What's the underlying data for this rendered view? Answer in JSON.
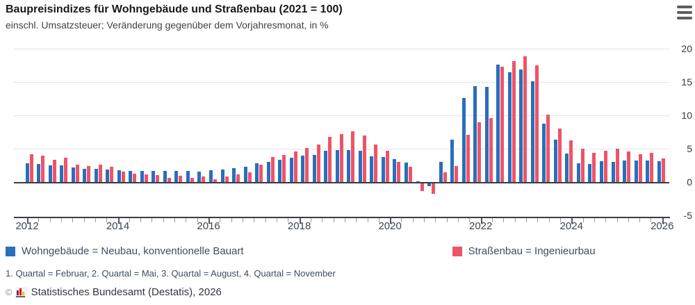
{
  "header": {
    "title": "Baupreisindizes für Wohngebäude und Straßenbau (2021 = 100)",
    "subtitle": "einschl. Umsatzsteuer; Veränderung gegenüber dem Vorjahresmonat, in %"
  },
  "menu": {
    "icon": "hamburger-menu-icon"
  },
  "chart_data": {
    "type": "bar",
    "title": "Baupreisindizes für Wohngebäude und Straßenbau (2021 = 100)",
    "subtitle": "einschl. Umsatzsteuer; Veränderung gegenüber dem Vorjahresmonat, in %",
    "ylabel": "",
    "xlabel": "",
    "ylim": [
      -5,
      20
    ],
    "yticks": [
      -5,
      0,
      5,
      10,
      15,
      20
    ],
    "xticks": [
      2012,
      2014,
      2016,
      2018,
      2020,
      2022,
      2024,
      2026
    ],
    "grid": true,
    "legend_position": "bottom",
    "categories": [
      "2012 Q1",
      "2012 Q2",
      "2012 Q3",
      "2012 Q4",
      "2013 Q1",
      "2013 Q2",
      "2013 Q3",
      "2013 Q4",
      "2014 Q1",
      "2014 Q2",
      "2014 Q3",
      "2014 Q4",
      "2015 Q1",
      "2015 Q2",
      "2015 Q3",
      "2015 Q4",
      "2016 Q1",
      "2016 Q2",
      "2016 Q3",
      "2016 Q4",
      "2017 Q1",
      "2017 Q2",
      "2017 Q3",
      "2017 Q4",
      "2018 Q1",
      "2018 Q2",
      "2018 Q3",
      "2018 Q4",
      "2019 Q1",
      "2019 Q2",
      "2019 Q3",
      "2019 Q4",
      "2020 Q1",
      "2020 Q2",
      "2020 Q3",
      "2020 Q4",
      "2021 Q1",
      "2021 Q2",
      "2021 Q3",
      "2021 Q4",
      "2022 Q1",
      "2022 Q2",
      "2022 Q3",
      "2022 Q4",
      "2023 Q1",
      "2023 Q2",
      "2023 Q3",
      "2023 Q4",
      "2024 Q1",
      "2024 Q2",
      "2024 Q3",
      "2024 Q4",
      "2025 Q1",
      "2025 Q2",
      "2025 Q3",
      "2025 Q4"
    ],
    "series": [
      {
        "name": "Wohngebäude = Neubau, konventionelle Bauart",
        "color": "#2a6ebb",
        "values": [
          2.8,
          2.7,
          2.5,
          2.5,
          2.2,
          2.0,
          2.0,
          1.9,
          1.8,
          1.7,
          1.7,
          1.7,
          1.7,
          1.7,
          1.7,
          1.6,
          1.8,
          1.9,
          2.1,
          2.3,
          2.8,
          3.0,
          3.3,
          3.6,
          4.0,
          4.1,
          4.7,
          4.8,
          4.8,
          4.7,
          3.9,
          3.8,
          3.4,
          2.9,
          0.1,
          -0.4,
          3.0,
          6.4,
          12.6,
          14.4,
          14.3,
          17.6,
          16.5,
          16.9,
          15.1,
          8.8,
          6.4,
          4.3,
          2.8,
          2.7,
          3.1,
          3.0,
          3.2,
          3.2,
          3.2,
          3.1
        ]
      },
      {
        "name": "Straßenbau = Ingenieurbau",
        "color": "#ed5468",
        "values": [
          4.2,
          4.0,
          3.3,
          3.6,
          2.6,
          2.4,
          2.6,
          2.3,
          1.6,
          1.2,
          1.1,
          1.0,
          0.6,
          0.9,
          0.6,
          0.8,
          0.4,
          0.8,
          1.1,
          1.5,
          2.6,
          3.8,
          4.1,
          4.6,
          5.1,
          5.6,
          6.8,
          7.2,
          7.6,
          7.0,
          5.6,
          4.7,
          3.0,
          2.3,
          -1.1,
          -1.6,
          1.5,
          2.4,
          7.1,
          9.0,
          9.6,
          17.3,
          18.1,
          18.9,
          17.5,
          10.1,
          8.0,
          6.2,
          5.0,
          4.4,
          4.7,
          5.0,
          4.6,
          4.2,
          4.4,
          3.5
        ]
      }
    ]
  },
  "legend": {
    "items": [
      {
        "label": "Wohngebäude = Neubau, konventionelle Bauart",
        "color": "#2a6ebb"
      },
      {
        "label": "Straßenbau = Ingenieurbau",
        "color": "#ed5468"
      }
    ]
  },
  "footnote": "1. Quartal = Februar, 2. Quartal = Mai, 3. Quartal = August, 4. Quartal = November",
  "source": {
    "copyright": "©",
    "logo_icon": "destatis-bar-chart-icon",
    "text": "Statistisches Bundesamt (Destatis), 2026"
  }
}
